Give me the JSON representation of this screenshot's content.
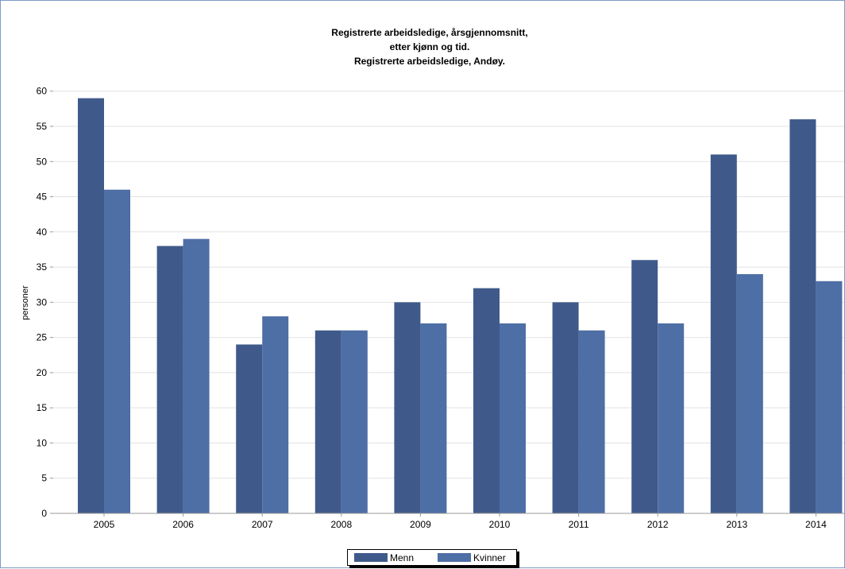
{
  "chart_data": {
    "type": "bar",
    "title_lines": [
      "Registrerte arbeidsledige, årsgjennomsnitt,",
      "etter kjønn og tid.",
      "Registrerte arbeidsledige, Andøy."
    ],
    "ylabel": "personer",
    "xlabel": "",
    "ylim": [
      0,
      60
    ],
    "yticks": [
      "0",
      "5",
      "10",
      "15",
      "20",
      "25",
      "30",
      "35",
      "40",
      "45",
      "50",
      "55",
      "60"
    ],
    "grid": true,
    "legend_position": "bottom",
    "categories": [
      "2005",
      "2006",
      "2007",
      "2008",
      "2009",
      "2010",
      "2011",
      "2012",
      "2013",
      "2014"
    ],
    "series": [
      {
        "name": "Menn",
        "color": "#3f5a8a",
        "values": [
          59,
          38,
          24,
          26,
          30,
          32,
          30,
          36,
          51,
          56
        ]
      },
      {
        "name": "Kvinner",
        "color": "#4e6ea6",
        "values": [
          46,
          39,
          28,
          26,
          27,
          27,
          26,
          27,
          34,
          33
        ]
      }
    ]
  }
}
